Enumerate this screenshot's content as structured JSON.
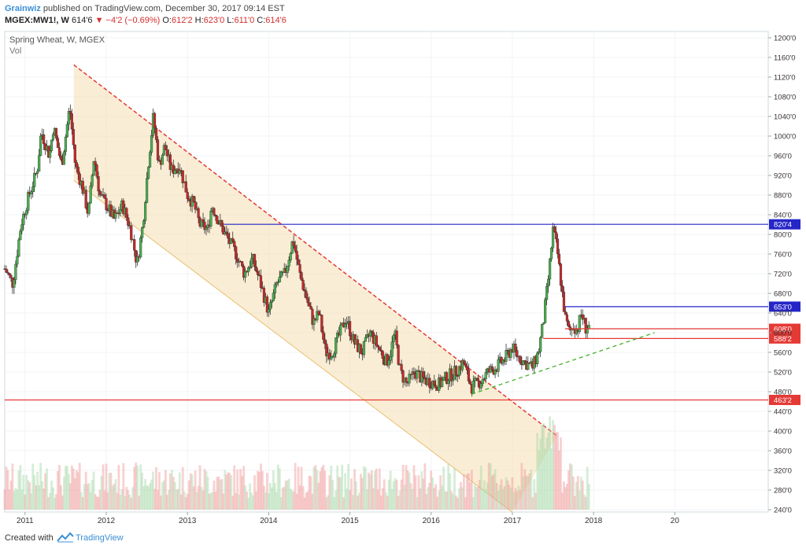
{
  "header": {
    "author": "Grainwiz",
    "published_text": " published on TradingView.com, December 30, 2017 09:14 EST",
    "symbol": "MGEX:MW1!, W",
    "price": "614'6",
    "change_icon": "down-triangle-icon",
    "change": "−4'2 (−0.69%)",
    "open_label": "O:",
    "open": "612'2",
    "high_label": "H:",
    "high": "623'0",
    "low_label": "L:",
    "low": "611'0",
    "close_label": "C:",
    "close": "614'6"
  },
  "footer": {
    "created_with": "Created with",
    "brand": "TradingView"
  },
  "chart_data": {
    "type": "candlestick",
    "title": "Spring Wheat, W, MGEX",
    "subtitle": "Vol",
    "ylim": [
      240,
      1200
    ],
    "y_ticks": [
      "1200'0",
      "1160'0",
      "1120'0",
      "1080'0",
      "1040'0",
      "1000'0",
      "960'0",
      "920'0",
      "880'0",
      "840'0",
      "800'0",
      "760'0",
      "720'0",
      "680'0",
      "640'0",
      "600'0",
      "560'0",
      "520'0",
      "480'0",
      "440'0",
      "400'0",
      "360'0",
      "320'0",
      "280'0",
      "240'0"
    ],
    "y_tick_values": [
      1200,
      1160,
      1120,
      1080,
      1040,
      1000,
      960,
      920,
      880,
      840,
      800,
      760,
      720,
      680,
      640,
      600,
      560,
      520,
      480,
      440,
      400,
      360,
      320,
      280,
      240
    ],
    "xlim": [
      2010.75,
      2020.15
    ],
    "x_ticks": [
      "2011",
      "2012",
      "2013",
      "2014",
      "2015",
      "2016",
      "2017",
      "2018",
      "20"
    ],
    "x_tick_values": [
      2011.0,
      2012.0,
      2013.0,
      2014.0,
      2015.0,
      2016.0,
      2017.0,
      2018.0,
      2019.0
    ],
    "price_path": [
      [
        2010.75,
        730
      ],
      [
        2010.85,
        700
      ],
      [
        2010.95,
        820
      ],
      [
        2011.05,
        880
      ],
      [
        2011.15,
        930
      ],
      [
        2011.2,
        1010
      ],
      [
        2011.3,
        960
      ],
      [
        2011.35,
        1020
      ],
      [
        2011.45,
        940
      ],
      [
        2011.55,
        1060
      ],
      [
        2011.62,
        940
      ],
      [
        2011.7,
        900
      ],
      [
        2011.78,
        840
      ],
      [
        2011.85,
        960
      ],
      [
        2011.92,
        880
      ],
      [
        2012.0,
        860
      ],
      [
        2012.1,
        830
      ],
      [
        2012.2,
        860
      ],
      [
        2012.3,
        810
      ],
      [
        2012.38,
        740
      ],
      [
        2012.45,
        820
      ],
      [
        2012.52,
        950
      ],
      [
        2012.58,
        1040
      ],
      [
        2012.65,
        940
      ],
      [
        2012.72,
        980
      ],
      [
        2012.8,
        930
      ],
      [
        2012.9,
        940
      ],
      [
        2013.0,
        880
      ],
      [
        2013.08,
        860
      ],
      [
        2013.15,
        820
      ],
      [
        2013.25,
        810
      ],
      [
        2013.3,
        860
      ],
      [
        2013.4,
        820
      ],
      [
        2013.5,
        790
      ],
      [
        2013.6,
        760
      ],
      [
        2013.7,
        720
      ],
      [
        2013.8,
        750
      ],
      [
        2013.9,
        700
      ],
      [
        2014.0,
        640
      ],
      [
        2014.1,
        700
      ],
      [
        2014.2,
        720
      ],
      [
        2014.3,
        790
      ],
      [
        2014.38,
        720
      ],
      [
        2014.45,
        680
      ],
      [
        2014.55,
        620
      ],
      [
        2014.62,
        640
      ],
      [
        2014.7,
        560
      ],
      [
        2014.78,
        560
      ],
      [
        2014.88,
        600
      ],
      [
        2014.95,
        630
      ],
      [
        2015.05,
        580
      ],
      [
        2015.15,
        560
      ],
      [
        2015.25,
        600
      ],
      [
        2015.35,
        570
      ],
      [
        2015.45,
        540
      ],
      [
        2015.5,
        560
      ],
      [
        2015.55,
        600
      ],
      [
        2015.62,
        520
      ],
      [
        2015.7,
        495
      ],
      [
        2015.8,
        520
      ],
      [
        2015.9,
        505
      ],
      [
        2016.0,
        500
      ],
      [
        2016.1,
        495
      ],
      [
        2016.2,
        510
      ],
      [
        2016.3,
        520
      ],
      [
        2016.4,
        540
      ],
      [
        2016.45,
        510
      ],
      [
        2016.5,
        490
      ],
      [
        2016.6,
        500
      ],
      [
        2016.7,
        520
      ],
      [
        2016.8,
        530
      ],
      [
        2016.9,
        545
      ],
      [
        2017.0,
        570
      ],
      [
        2017.05,
        555
      ],
      [
        2017.15,
        540
      ],
      [
        2017.25,
        530
      ],
      [
        2017.32,
        560
      ],
      [
        2017.38,
        620
      ],
      [
        2017.45,
        720
      ],
      [
        2017.5,
        810
      ],
      [
        2017.55,
        770
      ],
      [
        2017.6,
        700
      ],
      [
        2017.65,
        630
      ],
      [
        2017.7,
        600
      ],
      [
        2017.75,
        615
      ],
      [
        2017.8,
        605
      ],
      [
        2017.85,
        640
      ],
      [
        2017.9,
        610
      ],
      [
        2017.95,
        614
      ]
    ],
    "horizontal_levels": [
      {
        "value": 820.5,
        "label": "820'4",
        "color": "#2525c8",
        "x_start": 2013.45
      },
      {
        "value": 653,
        "label": "653'0",
        "color": "#2525c8",
        "x_start": 2017.65
      },
      {
        "value": 608,
        "label": "608'0",
        "color": "#e53935",
        "x_start": 2017.65
      },
      {
        "value": 588.25,
        "label": "588'2",
        "color": "#e53935",
        "x_start": 2017.38
      },
      {
        "value": 463.25,
        "label": "463'2",
        "color": "#e53935",
        "x_start": 2010.75
      }
    ],
    "channel": {
      "upper": [
        [
          2011.6,
          1145
        ],
        [
          2017.55,
          390
        ]
      ],
      "lower": [
        [
          2011.6,
          910
        ],
        [
          2017.0,
          235
        ]
      ],
      "fill": "#f5deb3"
    },
    "support_trend": [
      [
        2016.5,
        475
      ],
      [
        2018.75,
        600
      ]
    ],
    "colors": {
      "up": "#4caf50",
      "down": "#c62828",
      "level_blue": "#2525c8",
      "level_red": "#e53935",
      "channel_line": "#e53935",
      "trend": "#43b02a"
    }
  }
}
